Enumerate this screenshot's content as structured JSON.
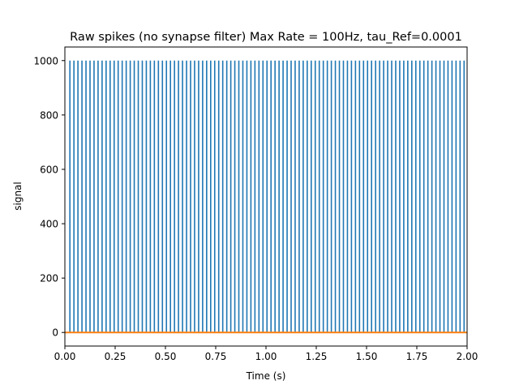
{
  "chart_data": {
    "type": "line",
    "title": "Raw spikes (no synapse filter) Max Rate = 100Hz, tau_Ref=0.0001",
    "xlabel": "Time (s)",
    "ylabel": "signal",
    "xlim": [
      0.0,
      2.0
    ],
    "ylim": [
      -50,
      1050
    ],
    "x_ticks": [
      0.0,
      0.25,
      0.5,
      0.75,
      1.0,
      1.25,
      1.5,
      1.75,
      2.0
    ],
    "x_tick_labels": [
      "0.00",
      "0.25",
      "0.50",
      "0.75",
      "1.00",
      "1.25",
      "1.50",
      "1.75",
      "2.00"
    ],
    "y_ticks": [
      0,
      200,
      400,
      600,
      800,
      1000
    ],
    "y_tick_labels": [
      "0",
      "200",
      "400",
      "600",
      "800",
      "1000"
    ],
    "grid": false,
    "series": [
      {
        "color": "#1f77b4",
        "kind": "spike-train",
        "spike_height": 1000,
        "baseline": 0,
        "spike_times": [
          0.025,
          0.045,
          0.065,
          0.085,
          0.105,
          0.125,
          0.145,
          0.165,
          0.185,
          0.205,
          0.225,
          0.245,
          0.265,
          0.285,
          0.305,
          0.325,
          0.345,
          0.365,
          0.385,
          0.405,
          0.425,
          0.445,
          0.465,
          0.485,
          0.505,
          0.525,
          0.545,
          0.565,
          0.585,
          0.605,
          0.625,
          0.645,
          0.665,
          0.685,
          0.705,
          0.725,
          0.745,
          0.765,
          0.785,
          0.805,
          0.825,
          0.845,
          0.865,
          0.885,
          0.905,
          0.925,
          0.945,
          0.965,
          0.985,
          1.005,
          1.025,
          1.045,
          1.065,
          1.085,
          1.105,
          1.125,
          1.145,
          1.165,
          1.185,
          1.205,
          1.225,
          1.245,
          1.265,
          1.285,
          1.305,
          1.325,
          1.345,
          1.365,
          1.385,
          1.405,
          1.425,
          1.445,
          1.465,
          1.485,
          1.505,
          1.525,
          1.545,
          1.565,
          1.585,
          1.605,
          1.625,
          1.645,
          1.665,
          1.685,
          1.705,
          1.725,
          1.745,
          1.765,
          1.785,
          1.805,
          1.825,
          1.845,
          1.865,
          1.885,
          1.905,
          1.925,
          1.945,
          1.965,
          1.985
        ]
      },
      {
        "color": "#ff7f0e",
        "kind": "line",
        "x": [
          0.0,
          2.0
        ],
        "y": [
          0,
          0
        ]
      }
    ]
  }
}
